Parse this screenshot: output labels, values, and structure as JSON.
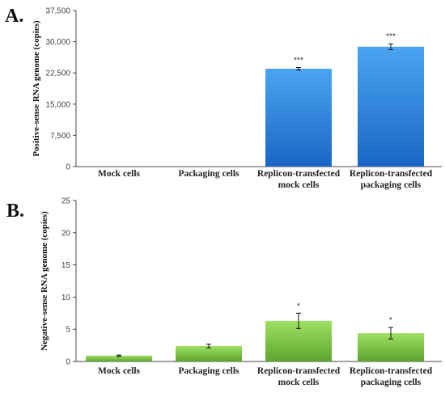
{
  "chart_data": [
    {
      "panel_label": "A.",
      "type": "bar",
      "ylabel": "Positive-sense RNA genome (copies)",
      "ylim": [
        0,
        37500
      ],
      "yticks": [
        "0",
        "7,500",
        "15,000",
        "22,500",
        "30,000",
        "37,500"
      ],
      "categories": [
        [
          "Mock cells"
        ],
        [
          "Packaging cells"
        ],
        [
          "Replicon-transfected",
          "mock cells"
        ],
        [
          "Replicon-transfected",
          "packaging cells"
        ]
      ],
      "values": [
        0,
        0,
        23500,
        28800
      ],
      "errors": [
        0,
        0,
        300,
        700
      ],
      "significance": [
        "",
        "",
        "***",
        "***"
      ],
      "bar_color": "#2f86e0",
      "bar_color_top": "#4aa5f2",
      "bar_color_bottom": "#1a65c4",
      "grid": false
    },
    {
      "panel_label": "B.",
      "type": "bar",
      "ylabel": "Negative-sense RNA genome (copies)",
      "ylim": [
        0,
        25
      ],
      "yticks": [
        "0",
        "5",
        "10",
        "15",
        "20",
        "25"
      ],
      "categories": [
        [
          "Mock cells"
        ],
        [
          "Packaging cells"
        ],
        [
          "Replicon-transfected",
          "mock cells"
        ],
        [
          "Replicon-transfected",
          "packaging cells"
        ]
      ],
      "values": [
        0.9,
        2.4,
        6.3,
        4.4
      ],
      "errors": [
        0.1,
        0.3,
        1.2,
        0.9
      ],
      "significance": [
        "",
        "",
        "*",
        "*"
      ],
      "bar_color": "#7cc443",
      "bar_color_top": "#9ee063",
      "bar_color_bottom": "#5ea52e",
      "grid": false
    }
  ]
}
